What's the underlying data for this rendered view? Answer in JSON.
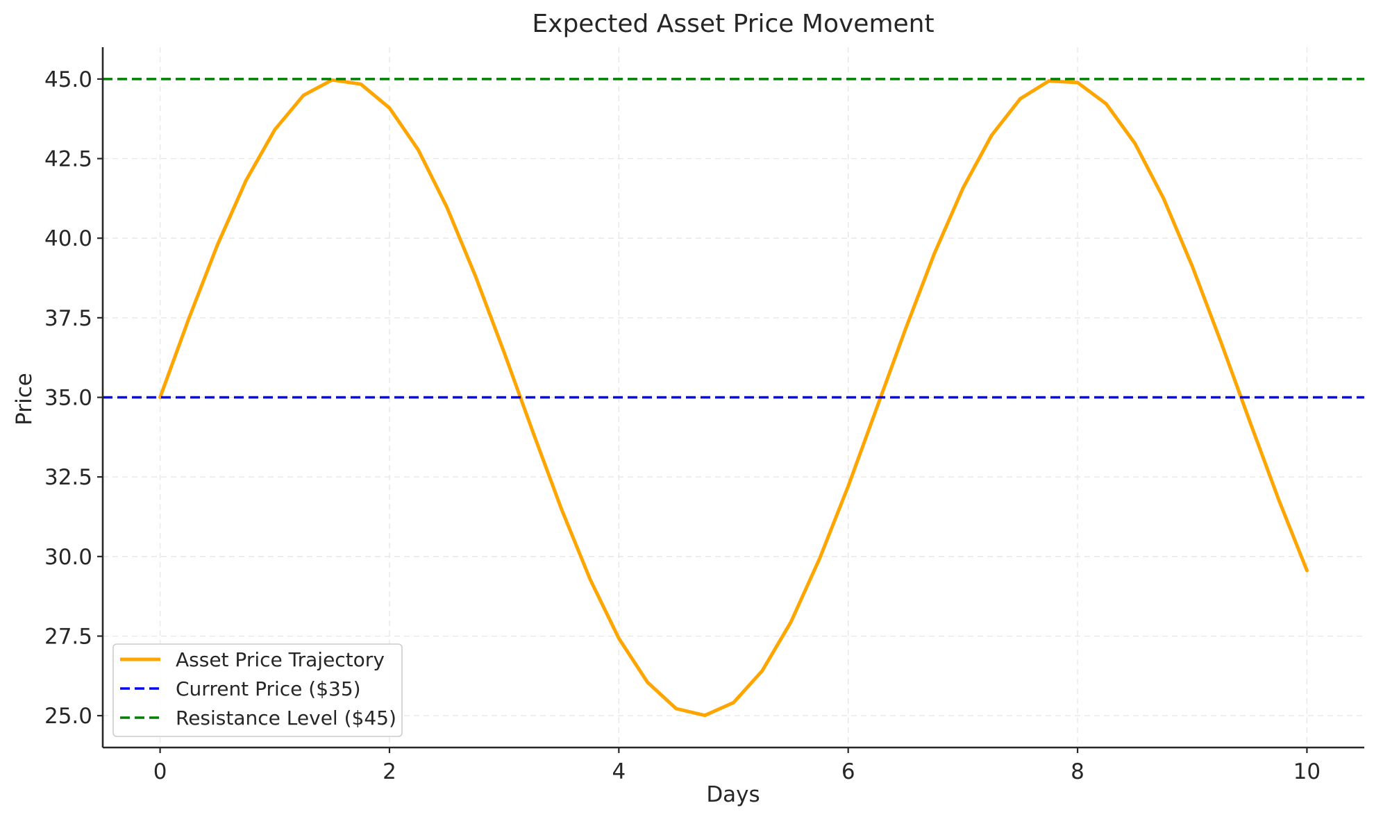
{
  "chart_data": {
    "type": "line",
    "title": "Expected Asset Price Movement",
    "xlabel": "Days",
    "ylabel": "Price",
    "xlim": [
      -0.5,
      10.5
    ],
    "ylim": [
      24.0,
      46.0
    ],
    "xticks": [
      0,
      2,
      4,
      6,
      8,
      10
    ],
    "xtick_labels": [
      "0",
      "2",
      "4",
      "6",
      "8",
      "10"
    ],
    "yticks": [
      25.0,
      27.5,
      30.0,
      32.5,
      35.0,
      37.5,
      40.0,
      42.5,
      45.0
    ],
    "ytick_labels": [
      "25.0",
      "27.5",
      "30.0",
      "32.5",
      "35.0",
      "37.5",
      "40.0",
      "42.5",
      "45.0"
    ],
    "grid": true,
    "legend_position": "lower-left",
    "series": [
      {
        "name": "Asset Price Trajectory",
        "color": "#FFA500",
        "style": "solid",
        "x": [
          0,
          0.25,
          0.5,
          0.75,
          1,
          1.25,
          1.5,
          1.75,
          2,
          2.25,
          2.5,
          2.75,
          3,
          3.25,
          3.5,
          3.75,
          4,
          4.25,
          4.5,
          4.75,
          5,
          5.25,
          5.5,
          5.75,
          6,
          6.25,
          6.5,
          6.75,
          7,
          7.25,
          7.5,
          7.75,
          8,
          8.25,
          8.5,
          8.75,
          9,
          9.25,
          9.5,
          9.75,
          10
        ],
        "y": [
          35.0,
          37.47,
          39.79,
          41.82,
          43.41,
          44.49,
          44.97,
          44.84,
          44.09,
          42.78,
          40.98,
          38.81,
          36.41,
          33.92,
          31.49,
          29.28,
          27.43,
          26.05,
          25.22,
          25.01,
          25.41,
          26.41,
          27.94,
          29.93,
          32.21,
          34.68,
          37.15,
          39.51,
          41.57,
          43.23,
          44.38,
          44.94,
          44.89,
          44.22,
          42.98,
          41.25,
          39.12,
          36.74,
          34.26,
          31.82,
          29.56
        ]
      },
      {
        "name": "Current Price ($35)",
        "color": "#0000FF",
        "style": "dashed",
        "y": 35
      },
      {
        "name": "Resistance Level ($45)",
        "color": "#008000",
        "style": "dashed",
        "y": 45
      }
    ]
  }
}
